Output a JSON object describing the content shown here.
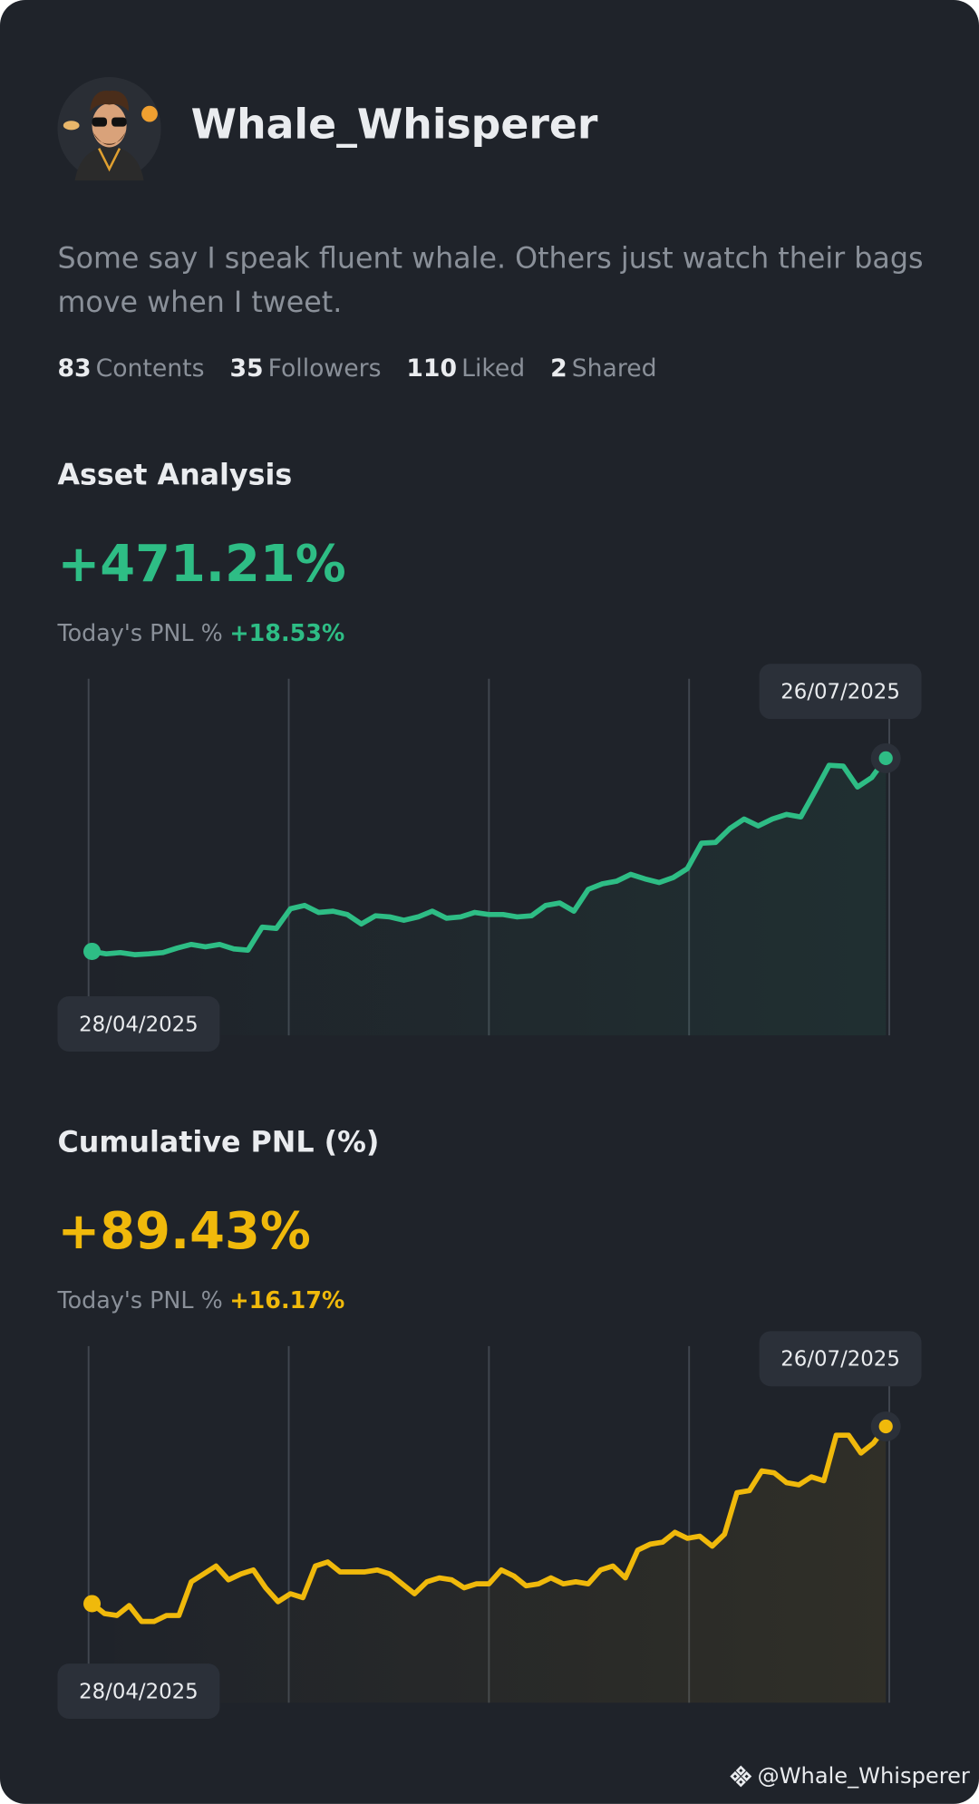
{
  "profile": {
    "name": "Whale_Whisperer",
    "bio": "Some say I speak fluent whale. Others just watch their bags move when I tweet.",
    "stats": [
      {
        "value": "83",
        "label": "Contents"
      },
      {
        "value": "35",
        "label": "Followers"
      },
      {
        "value": "110",
        "label": "Liked"
      },
      {
        "value": "2",
        "label": "Shared"
      }
    ]
  },
  "charts": [
    {
      "type": "line",
      "title": "Asset Analysis",
      "headline": "+471.21%",
      "today_label": "Today's PNL %",
      "today_value": "+18.53%",
      "start_date": "28/04/2025",
      "end_date": "26/07/2025",
      "color": "#2ebd85",
      "ylim": [
        -205,
        665
      ],
      "values": [
        0,
        -6,
        -3,
        -8,
        -6,
        -3,
        8,
        17,
        11,
        17,
        6,
        3,
        59,
        56,
        104,
        112,
        95,
        98,
        90,
        67,
        87,
        84,
        76,
        84,
        98,
        81,
        84,
        95,
        90,
        90,
        84,
        87,
        112,
        118,
        98,
        151,
        165,
        171,
        188,
        177,
        168,
        180,
        202,
        264,
        266,
        300,
        323,
        306,
        323,
        334,
        328,
        390,
        454,
        452,
        401,
        424,
        471.21
      ]
    },
    {
      "type": "line",
      "title": "Cumulative PNL (%)",
      "headline": "+89.43%",
      "today_label": "Today's PNL %",
      "today_value": "+16.17%",
      "start_date": "28/04/2025",
      "end_date": "26/07/2025",
      "color": "#f0b90b",
      "ylim": [
        -50,
        130
      ],
      "values": [
        0,
        -5,
        -6,
        -1,
        -9,
        -9,
        -6,
        -6,
        11,
        15,
        19,
        12,
        15,
        17,
        8,
        1,
        5,
        3,
        19,
        21,
        16,
        16,
        16,
        17,
        15,
        10,
        5,
        11,
        13,
        12,
        8,
        10,
        10,
        17,
        14,
        9,
        10,
        13,
        10,
        11,
        10,
        17,
        19,
        13,
        27,
        30,
        31,
        36,
        33,
        34,
        29,
        35,
        56,
        57,
        67,
        66,
        61,
        60,
        64,
        62,
        85,
        85,
        76,
        81,
        89.43
      ]
    }
  ],
  "footer": {
    "handle": "@Whale_Whisperer"
  }
}
